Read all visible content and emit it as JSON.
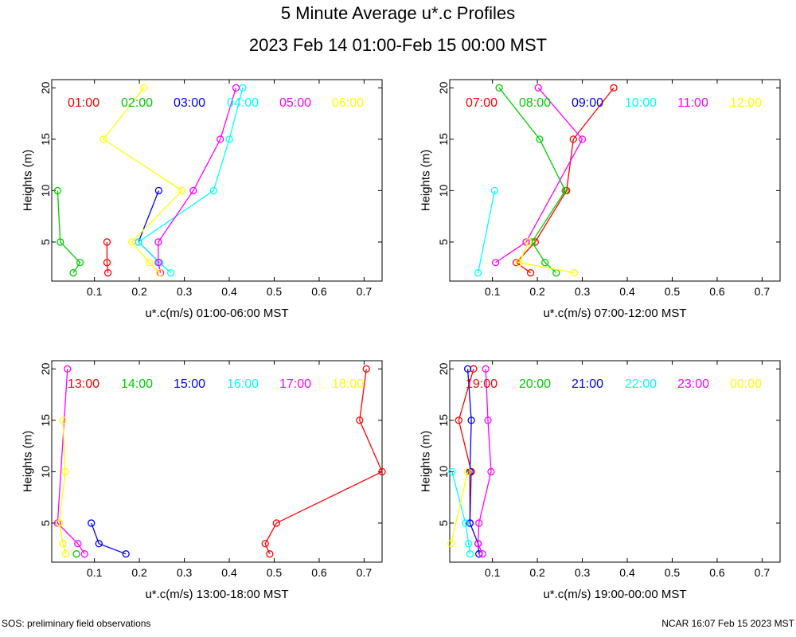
{
  "title": "5 Minute Average u*.c Profiles",
  "subtitle": "2023 Feb 14 01:00-Feb 15 00:00 MST",
  "footer_left": "SOS: preliminary field observations",
  "footer_right": "NCAR 16:07 Feb 15 2023 MST",
  "chart_data": [
    {
      "type": "line",
      "xlabel": "u*.c(m/s) 01:00-06:00 MST",
      "ylabel": "Heights (m)",
      "xlim": [
        0.005,
        0.74
      ],
      "ylim": [
        1.2,
        20.8
      ],
      "xticks": [
        0.1,
        0.2,
        0.3,
        0.4,
        0.5,
        0.6,
        0.7
      ],
      "xtick_labels": [
        "0.1",
        "0.2",
        "0.3",
        "0.4",
        "0.5",
        "0.6",
        "0.7"
      ],
      "yticks": [
        5,
        10,
        15,
        20
      ],
      "ytick_labels": [
        "5",
        "10",
        "15",
        "20"
      ],
      "series": [
        {
          "name": "01:00",
          "color": "#ff0000",
          "points": [
            [
              0.13,
              2
            ],
            [
              0.128,
              3
            ],
            [
              0.128,
              5
            ]
          ]
        },
        {
          "name": "02:00",
          "color": "#00cc00",
          "points": [
            [
              0.053,
              2
            ],
            [
              0.068,
              3
            ],
            [
              0.024,
              5
            ],
            [
              0.018,
              10
            ]
          ]
        },
        {
          "name": "03:00",
          "color": "#0000ff",
          "points": [
            [
              0.245,
              3
            ],
            [
              0.198,
              5
            ],
            [
              0.243,
              10
            ]
          ]
        },
        {
          "name": "04:00",
          "color": "#00ffff",
          "points": [
            [
              0.27,
              2
            ],
            [
              0.245,
              3
            ],
            [
              0.198,
              5
            ],
            [
              0.365,
              10
            ],
            [
              0.4,
              15
            ],
            [
              0.43,
              20
            ]
          ]
        },
        {
          "name": "05:00",
          "color": "#ff00ff",
          "points": [
            [
              0.247,
              2
            ],
            [
              0.242,
              3
            ],
            [
              0.242,
              5
            ],
            [
              0.32,
              10
            ],
            [
              0.38,
              15
            ],
            [
              0.415,
              20
            ]
          ]
        },
        {
          "name": "06:00",
          "color": "#ffff00",
          "points": [
            [
              0.245,
              2
            ],
            [
              0.222,
              3
            ],
            [
              0.183,
              5
            ],
            [
              0.295,
              10
            ],
            [
              0.12,
              15
            ],
            [
              0.21,
              20
            ]
          ]
        }
      ]
    },
    {
      "type": "line",
      "xlabel": "u*.c(m/s) 07:00-12:00 MST",
      "ylabel": "Heights (m)",
      "xlim": [
        0.005,
        0.74
      ],
      "ylim": [
        1.2,
        20.8
      ],
      "xticks": [
        0.1,
        0.2,
        0.3,
        0.4,
        0.5,
        0.6,
        0.7
      ],
      "xtick_labels": [
        "0.1",
        "0.2",
        "0.3",
        "0.4",
        "0.5",
        "0.6",
        "0.7"
      ],
      "yticks": [
        5,
        10,
        15,
        20
      ],
      "ytick_labels": [
        "5",
        "10",
        "15",
        "20"
      ],
      "series": [
        {
          "name": "07:00",
          "color": "#ff0000",
          "points": [
            [
              0.185,
              2
            ],
            [
              0.153,
              3
            ],
            [
              0.195,
              5
            ],
            [
              0.265,
              10
            ],
            [
              0.28,
              15
            ],
            [
              0.37,
              20
            ]
          ]
        },
        {
          "name": "08:00",
          "color": "#00cc00",
          "points": [
            [
              0.242,
              2
            ],
            [
              0.217,
              3
            ],
            [
              0.188,
              5
            ],
            [
              0.262,
              10
            ],
            [
              0.205,
              15
            ],
            [
              0.115,
              20
            ]
          ]
        },
        {
          "name": "09:00",
          "color": "#0000ff",
          "points": []
        },
        {
          "name": "10:00",
          "color": "#00ffff",
          "points": [
            [
              0.068,
              2
            ],
            [
              0.105,
              10
            ]
          ]
        },
        {
          "name": "11:00",
          "color": "#ff00ff",
          "points": [
            [
              0.107,
              3
            ],
            [
              0.175,
              5
            ],
            [
              0.3,
              15
            ],
            [
              0.202,
              20
            ]
          ]
        },
        {
          "name": "12:00",
          "color": "#ffff00",
          "points": [
            [
              0.282,
              2
            ],
            [
              0.16,
              3
            ],
            [
              0.18,
              5
            ]
          ]
        }
      ]
    },
    {
      "type": "line",
      "xlabel": "u*.c(m/s) 13:00-18:00 MST",
      "ylabel": "Heights (m)",
      "xlim": [
        0.005,
        0.74
      ],
      "ylim": [
        1.2,
        20.8
      ],
      "xticks": [
        0.1,
        0.2,
        0.3,
        0.4,
        0.5,
        0.6,
        0.7
      ],
      "xtick_labels": [
        "0.1",
        "0.2",
        "0.3",
        "0.4",
        "0.5",
        "0.6",
        "0.7"
      ],
      "yticks": [
        5,
        10,
        15,
        20
      ],
      "ytick_labels": [
        "5",
        "10",
        "15",
        "20"
      ],
      "series": [
        {
          "name": "13:00",
          "color": "#ff0000",
          "points": [
            [
              0.49,
              2
            ],
            [
              0.48,
              3
            ],
            [
              0.505,
              5
            ],
            [
              0.74,
              10
            ],
            [
              0.69,
              15
            ],
            [
              0.705,
              20
            ]
          ]
        },
        {
          "name": "14:00",
          "color": "#00cc00",
          "points": [
            [
              0.06,
              2
            ]
          ]
        },
        {
          "name": "15:00",
          "color": "#0000ff",
          "points": [
            [
              0.17,
              2
            ],
            [
              0.11,
              3
            ],
            [
              0.093,
              5
            ]
          ]
        },
        {
          "name": "16:00",
          "color": "#00ffff",
          "points": []
        },
        {
          "name": "17:00",
          "color": "#ff00ff",
          "points": [
            [
              0.078,
              2
            ],
            [
              0.063,
              3
            ],
            [
              0.018,
              5
            ],
            [
              0.04,
              20
            ]
          ]
        },
        {
          "name": "18:00",
          "color": "#ffff00",
          "points": [
            [
              0.036,
              2
            ],
            [
              0.03,
              3
            ],
            [
              0.022,
              5
            ],
            [
              0.035,
              10
            ],
            [
              0.03,
              15
            ]
          ]
        }
      ]
    },
    {
      "type": "line",
      "xlabel": "u*.c(m/s) 19:00-00:00 MST",
      "ylabel": "Heights (m)",
      "xlim": [
        0.005,
        0.74
      ],
      "ylim": [
        1.2,
        20.8
      ],
      "xticks": [
        0.1,
        0.2,
        0.3,
        0.4,
        0.5,
        0.6,
        0.7
      ],
      "xtick_labels": [
        "0.1",
        "0.2",
        "0.3",
        "0.4",
        "0.5",
        "0.6",
        "0.7"
      ],
      "yticks": [
        5,
        10,
        15,
        20
      ],
      "ytick_labels": [
        "5",
        "10",
        "15",
        "20"
      ],
      "series": [
        {
          "name": "19:00",
          "color": "#ff0000",
          "points": [
            [
              0.05,
              5
            ],
            [
              0.053,
              10
            ],
            [
              0.025,
              15
            ],
            [
              0.058,
              20
            ]
          ]
        },
        {
          "name": "20:00",
          "color": "#00cc00",
          "points": []
        },
        {
          "name": "21:00",
          "color": "#0000ff",
          "points": [
            [
              0.07,
              2
            ],
            [
              0.068,
              3
            ],
            [
              0.05,
              5
            ],
            [
              0.05,
              10
            ],
            [
              0.053,
              15
            ],
            [
              0.045,
              20
            ]
          ]
        },
        {
          "name": "22:00",
          "color": "#00ffff",
          "points": [
            [
              0.05,
              2
            ],
            [
              0.047,
              3
            ],
            [
              0.04,
              5
            ],
            [
              0.01,
              10
            ]
          ]
        },
        {
          "name": "23:00",
          "color": "#ff00ff",
          "points": [
            [
              0.078,
              2
            ],
            [
              0.068,
              3
            ],
            [
              0.07,
              5
            ],
            [
              0.097,
              10
            ],
            [
              0.09,
              15
            ],
            [
              0.085,
              20
            ]
          ]
        },
        {
          "name": "00:00",
          "color": "#ffff00",
          "points": [
            [
              0.008,
              3
            ],
            [
              0.045,
              10
            ]
          ]
        }
      ]
    }
  ]
}
